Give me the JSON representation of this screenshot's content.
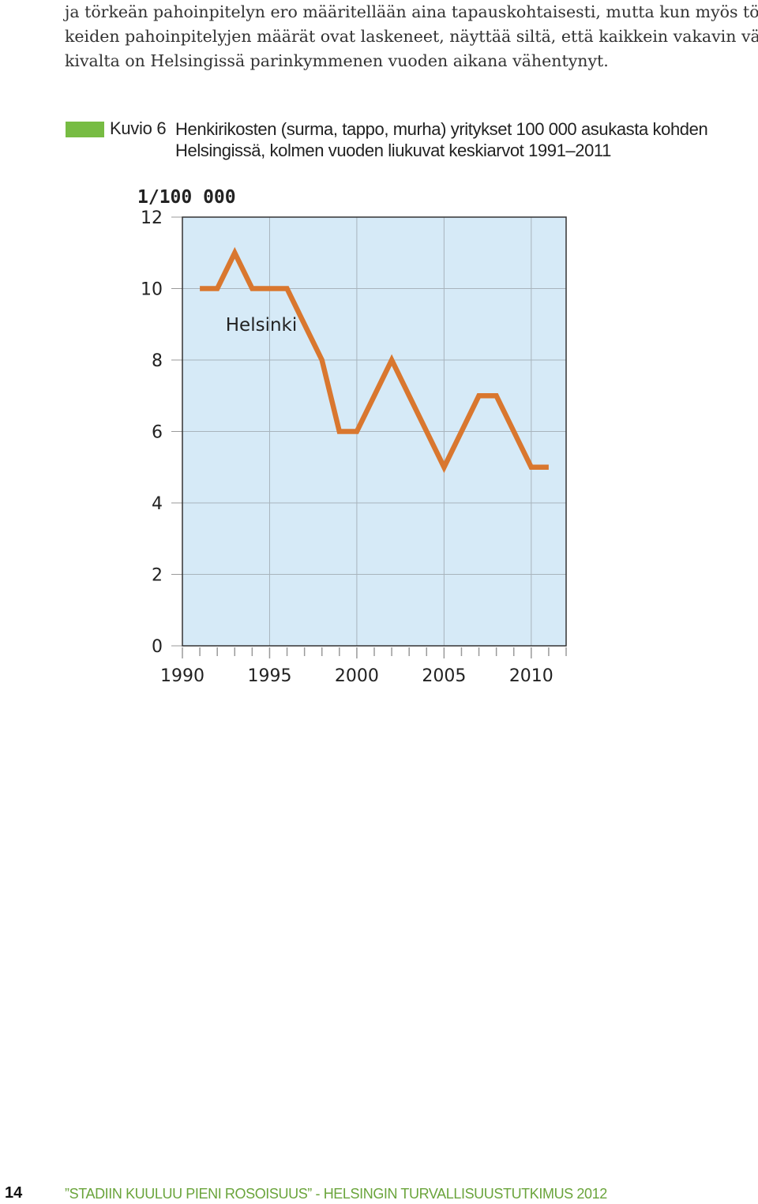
{
  "intro_lines": [
    "ja törkeän pahoinpitelyn ero määritellään aina tapauskohtaisesti, mutta kun myös tör-",
    "keiden pahoinpitelyjen määrät ovat laskeneet, näyttää siltä, että kaikkein vakavin vä-",
    "kivalta on Helsingissä parinkymmenen vuoden aikana vähentynyt."
  ],
  "caption": {
    "figure_number": "Kuvio 6",
    "title_line1": "Henkirikosten (surma, tappo, murha) yritykset 100 000 asukasta kohden",
    "title_line2": "Helsingissä, kolmen vuoden liukuvat keskiarvot 1991–2011",
    "marker_color": "#77bc43"
  },
  "chart_data": {
    "type": "line",
    "ylabel": "1/100 000",
    "ylim": [
      0,
      12
    ],
    "yticks": [
      0,
      2,
      4,
      6,
      8,
      10,
      12
    ],
    "xlim": [
      1990,
      2012
    ],
    "xticks": [
      1990,
      1995,
      2000,
      2005,
      2010
    ],
    "grid": true,
    "plot_background": "#d6eaf7",
    "series": [
      {
        "name": "Helsinki",
        "color": "#d9772f",
        "x": [
          1991,
          1992,
          1993,
          1994,
          1995,
          1996,
          1997,
          1998,
          1999,
          2000,
          2001,
          2002,
          2003,
          2004,
          2005,
          2006,
          2007,
          2008,
          2009,
          2010,
          2011
        ],
        "y": [
          10,
          10,
          11,
          10,
          10,
          10,
          9,
          8,
          6,
          6,
          7,
          8,
          7,
          6,
          5,
          6,
          7,
          7,
          6,
          5,
          5
        ]
      }
    ]
  },
  "footer": {
    "page_number": "14",
    "text": "”STADIIN KUULUU PIENI ROSOISUUS” - HELSINGIN TURVALLISUUSTUTKIMUS 2012"
  }
}
